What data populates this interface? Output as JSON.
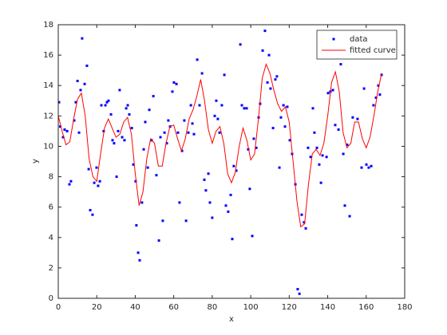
{
  "chart_data": {
    "type": "scatter",
    "xlabel": "x",
    "ylabel": "y",
    "xlim": [
      0,
      180
    ],
    "xticks": [
      0,
      20,
      40,
      60,
      80,
      100,
      120,
      140,
      160,
      180
    ],
    "ylim": [
      0,
      18
    ],
    "yticks": [
      0,
      2,
      4,
      6,
      8,
      10,
      12,
      14,
      16,
      18
    ],
    "grid": false,
    "legend": "northeast",
    "series": [
      {
        "name": "data",
        "color": "#0000ff",
        "mode": "markers",
        "x": [
          0.4,
          1,
          2.5,
          3.3,
          4.6,
          5.8,
          6.6,
          8.3,
          9.1,
          10,
          10.8,
          11.6,
          12.4,
          13.7,
          14.9,
          15.8,
          16.6,
          17.8,
          18.7,
          19.9,
          20.7,
          21.6,
          22.4,
          23.6,
          24.5,
          25.3,
          26.1,
          27.4,
          28.2,
          29,
          30.3,
          31.1,
          31.9,
          33.2,
          34.4,
          35.3,
          36.1,
          36.9,
          38.2,
          39,
          40.2,
          40.6,
          41.5,
          42.3,
          43.5,
          44.4,
          45.2,
          46.5,
          47.3,
          48.5,
          49.4,
          51,
          52.3,
          53.1,
          54.3,
          55.2,
          56.4,
          57.2,
          58.1,
          59.3,
          60.1,
          61.4,
          62.2,
          63,
          64.3,
          65.5,
          66.4,
          67.6,
          68.9,
          69.7,
          70.5,
          72.2,
          73.4,
          74.7,
          75.9,
          76.7,
          78,
          78.8,
          80,
          81.3,
          82.1,
          82.9,
          83.8,
          85,
          86.3,
          87.1,
          88.3,
          89.6,
          90.4,
          91.2,
          92.5,
          94.6,
          95.4,
          96.6,
          97.9,
          98.7,
          99.5,
          100.8,
          101.6,
          102.9,
          104.1,
          104.9,
          106.2,
          107.4,
          108.7,
          109.5,
          110.3,
          111.6,
          112.8,
          113.6,
          114.9,
          115.7,
          117,
          117.8,
          119,
          120.3,
          121.5,
          123.2,
          124.4,
          125.3,
          126.5,
          127.7,
          128.6,
          129.8,
          131.1,
          132.3,
          133.1,
          134.4,
          135.6,
          136.5,
          137.3,
          139.4,
          140.2,
          141.4,
          142.7,
          143.9,
          145.6,
          146.8,
          148.1,
          148.9,
          150.1,
          151.4,
          153,
          155.5,
          157.6,
          158.9,
          160.1,
          161.3,
          162.6,
          163.8,
          165.1,
          166.3,
          167.1,
          168
        ],
        "values": [
          12.9,
          11.3,
          10.6,
          11.1,
          11,
          7.5,
          7.7,
          11.7,
          12.9,
          14.3,
          10.9,
          13.7,
          17.1,
          14.1,
          15.3,
          8.5,
          5.8,
          5.5,
          7.6,
          8.6,
          7.4,
          7.7,
          12.7,
          11,
          12.7,
          12.9,
          13,
          12.1,
          10.4,
          10.2,
          8,
          11,
          13.7,
          10.6,
          10.4,
          12.5,
          12.7,
          12.1,
          11.2,
          8.8,
          7.7,
          4.8,
          3,
          2.5,
          6.3,
          9.8,
          11.6,
          8.6,
          12.4,
          10.4,
          13.3,
          8.1,
          3.8,
          10.6,
          5.1,
          10.9,
          10.2,
          11.7,
          11.3,
          13.6,
          14.2,
          14.1,
          10.9,
          6.3,
          9.7,
          11.7,
          5.1,
          10.9,
          12.7,
          11.5,
          10.8,
          15.7,
          12.7,
          14.8,
          7.8,
          7.1,
          8.2,
          6.3,
          5.3,
          12,
          13,
          11.8,
          10.9,
          12.7,
          14.7,
          6.1,
          5.7,
          6.8,
          3.9,
          8.7,
          8.4,
          16.7,
          12.7,
          12.5,
          12.5,
          9.8,
          7.2,
          4.1,
          10.5,
          9.9,
          11.9,
          12.8,
          16.3,
          17.6,
          14.2,
          16,
          13.8,
          11.2,
          14.4,
          14.6,
          8.6,
          11.9,
          12.7,
          11.3,
          12.6,
          10.4,
          9.5,
          7.5,
          0.6,
          0.3,
          5.5,
          5,
          4.6,
          9.9,
          9.3,
          12.5,
          10.9,
          9.9,
          8.8,
          7.6,
          9.4,
          9.3,
          13.5,
          13.6,
          13.7,
          11.4,
          11.1,
          15.4,
          9.5,
          6.1,
          10.1,
          5.4,
          11.9,
          11.8,
          8.6,
          13.8,
          8.8,
          8.6,
          8.7,
          12.7,
          13.2,
          14,
          13.4,
          14.7
        ]
      },
      {
        "name": "fitted curve",
        "color": "#ff0000",
        "mode": "line",
        "x": [
          0,
          2,
          4,
          6,
          8,
          10,
          12,
          14,
          16,
          18,
          20,
          22,
          24,
          26,
          28,
          30,
          32,
          34,
          36,
          38,
          40,
          42,
          44,
          46,
          48,
          50,
          52,
          54,
          56,
          58,
          60,
          62,
          64,
          66,
          68,
          70,
          72,
          74,
          76,
          78,
          80,
          82,
          84,
          86,
          88,
          90,
          92,
          94,
          96,
          98,
          100,
          102,
          104,
          106,
          108,
          110,
          112,
          114,
          116,
          118,
          120,
          122,
          124,
          126,
          128,
          130,
          132,
          134,
          136,
          138,
          140,
          142,
          144,
          146,
          148,
          150,
          152,
          154,
          156,
          158,
          160,
          162,
          164,
          166,
          168
        ],
        "values": [
          12,
          11,
          10.1,
          10.3,
          11.8,
          13.1,
          13.5,
          12,
          9.2,
          8,
          7.7,
          9.5,
          11.2,
          11.8,
          11.2,
          10.6,
          10.8,
          11.6,
          11.9,
          10.8,
          8.2,
          6.1,
          7,
          9.2,
          10.5,
          10.2,
          8.7,
          8.7,
          10.2,
          11.3,
          11.4,
          10.5,
          9.7,
          10.5,
          11.8,
          12.4,
          13.3,
          14.4,
          13,
          11.1,
          10.2,
          11,
          11.3,
          10.2,
          8.2,
          7.6,
          8.3,
          10,
          11.2,
          10.4,
          9.1,
          9.5,
          11.8,
          14.5,
          15.4,
          14.8,
          13.7,
          12.8,
          12.3,
          12.6,
          11.6,
          9,
          6.4,
          4.7,
          4.9,
          7.5,
          9.5,
          9.8,
          9.4,
          10.2,
          12,
          14.2,
          14.9,
          13.6,
          10.9,
          9.9,
          10.2,
          11.6,
          11.6,
          10.5,
          9.9,
          10.6,
          12,
          13.6,
          14.8
        ]
      }
    ]
  }
}
